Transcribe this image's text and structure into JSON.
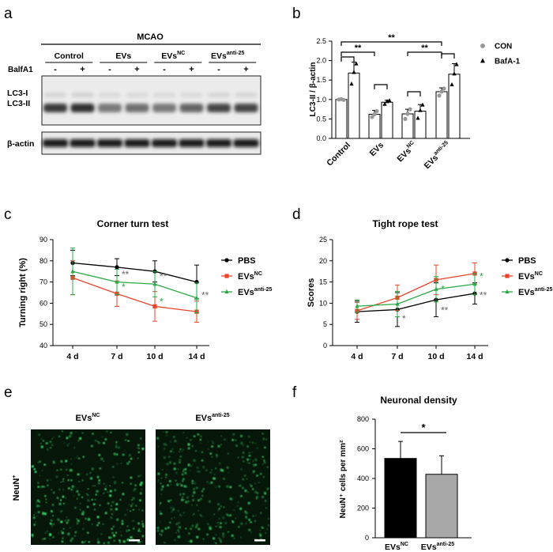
{
  "panel_letters": {
    "a": "a",
    "b": "b",
    "c": "c",
    "d": "d",
    "e": "e",
    "f": "f"
  },
  "blot": {
    "mcao": "MCAO",
    "bafa1_label": "BalfA1",
    "groups": [
      {
        "main": "Control",
        "sup": ""
      },
      {
        "main": "EVs",
        "sup": ""
      },
      {
        "main": "EVs",
        "sup": "NC"
      },
      {
        "main": "EVs",
        "sup": "anti-25"
      }
    ],
    "minus": "-",
    "plus": "+",
    "lc3i": "LC3-I",
    "lc3ii": "LC3-II",
    "actin": "β-actin",
    "lc3ii_intensity": [
      0.85,
      0.9,
      0.55,
      0.6,
      0.55,
      0.65,
      0.8,
      0.8
    ],
    "lc3i_intensity": [
      0.12,
      0.14,
      0.1,
      0.1,
      0.1,
      0.1,
      0.12,
      0.12
    ]
  },
  "chart_data": [
    {
      "id": "b",
      "type": "bar",
      "ylabel": "LC3-II / β-actin",
      "ylim": [
        0,
        2.5
      ],
      "yticks": [
        "0.0",
        "0.5",
        "1.0",
        "1.5",
        "2.0",
        "2.5"
      ],
      "categories": [
        {
          "main": "Control",
          "sup": ""
        },
        {
          "main": "EVs",
          "sup": ""
        },
        {
          "main": "EVs",
          "sup": "NC"
        },
        {
          "main": "EVs",
          "sup": "anti-25"
        }
      ],
      "series": [
        {
          "name": "CON",
          "values": [
            1.0,
            0.62,
            0.63,
            1.2
          ],
          "errors": [
            0.02,
            0.1,
            0.12,
            0.1
          ],
          "points": [
            [
              1.0,
              1.01,
              0.99
            ],
            [
              0.55,
              0.62,
              0.7
            ],
            [
              0.5,
              0.63,
              0.75
            ],
            [
              1.1,
              1.2,
              1.28
            ]
          ]
        },
        {
          "name": "BafA-1",
          "values": [
            1.68,
            0.93,
            0.7,
            1.65
          ],
          "errors": [
            0.28,
            0.05,
            0.17,
            0.27
          ],
          "points": [
            [
              1.4,
              1.7,
              1.92
            ],
            [
              0.88,
              0.95,
              0.97
            ],
            [
              0.52,
              0.72,
              0.86
            ],
            [
              1.38,
              1.66,
              1.9
            ]
          ]
        }
      ],
      "significance": [
        "**",
        "**",
        "**"
      ],
      "legend": "top-right"
    },
    {
      "id": "c",
      "type": "line",
      "title": "Corner turn test",
      "ylabel": "Turning right (%)",
      "ylim": [
        40,
        90
      ],
      "yticks": [
        "40",
        "50",
        "60",
        "70",
        "80",
        "90"
      ],
      "x": [
        "4 d",
        "7 d",
        "10 d",
        "14 d"
      ],
      "series": [
        {
          "name": "PBS",
          "sup": "",
          "color": "#000000",
          "values": [
            79,
            77,
            75,
            70
          ],
          "errors": [
            6,
            4,
            5,
            8
          ]
        },
        {
          "name": "EVs",
          "sup": "NC",
          "color": "#e8452a",
          "values": [
            72,
            64.5,
            58.5,
            56
          ],
          "errors": [
            8,
            6,
            7,
            5
          ]
        },
        {
          "name": "EVs",
          "sup": "anti-25",
          "color": "#2aa845",
          "values": [
            75,
            70,
            69,
            62.5
          ],
          "errors": [
            11,
            6,
            6,
            7
          ]
        }
      ],
      "annotations": [
        {
          "x": "7 d",
          "y": 74,
          "text": "**",
          "color": "#666666"
        },
        {
          "x": "7 d",
          "y": 68,
          "text": "*",
          "color": "#2aa845"
        },
        {
          "x": "10 d",
          "y": 73,
          "text": "**",
          "color": "#666666"
        },
        {
          "x": "10 d",
          "y": 61,
          "text": "*",
          "color": "#2aa845"
        },
        {
          "x": "14 d",
          "y": 64,
          "text": "**",
          "color": "#666666"
        }
      ],
      "legend": "right"
    },
    {
      "id": "d",
      "type": "line",
      "title": "Tight rope test",
      "ylabel": "Scores",
      "ylim": [
        0,
        25
      ],
      "yticks": [
        "0",
        "5",
        "10",
        "15",
        "20",
        "25"
      ],
      "x": [
        "4 d",
        "7 d",
        "10 d",
        "14 d"
      ],
      "series": [
        {
          "name": "PBS",
          "sup": "",
          "color": "#000000",
          "values": [
            8,
            8.5,
            10.8,
            12.3
          ],
          "errors": [
            2.5,
            4,
            4,
            2.5
          ]
        },
        {
          "name": "EVs",
          "sup": "NC",
          "color": "#e8452a",
          "values": [
            8.2,
            11.3,
            15.5,
            17
          ],
          "errors": [
            2,
            3,
            3.5,
            2.5
          ]
        },
        {
          "name": "EVs",
          "sup": "anti-25",
          "color": "#2aa845",
          "values": [
            9.3,
            9.8,
            13.3,
            14.5
          ],
          "errors": [
            1.5,
            3,
            3,
            2.5
          ]
        }
      ],
      "annotations": [
        {
          "x": "7 d",
          "y": 6.5,
          "text": "*",
          "color": "#666666"
        },
        {
          "x": "10 d",
          "y": 13.5,
          "text": "*",
          "color": "#2aa845"
        },
        {
          "x": "10 d",
          "y": 8.5,
          "text": "**",
          "color": "#666666"
        },
        {
          "x": "14 d",
          "y": 16.5,
          "text": "*",
          "color": "#2aa845"
        },
        {
          "x": "14 d",
          "y": 12,
          "text": "**",
          "color": "#666666"
        }
      ],
      "legend": "right"
    },
    {
      "id": "f",
      "type": "bar",
      "title": "Neuronal density",
      "ylabel": "NeuN⁺ cells per mm²",
      "ylim": [
        0,
        800
      ],
      "yticks": [
        "0",
        "200",
        "400",
        "600",
        "800"
      ],
      "categories": [
        {
          "main": "EVs",
          "sup": "NC"
        },
        {
          "main": "EVs",
          "sup": "anti-25"
        }
      ],
      "values": [
        535,
        428
      ],
      "errors": [
        115,
        125
      ],
      "colors": [
        "#000000",
        "#a8a8a8"
      ],
      "significance": "*"
    }
  ],
  "microscopy": {
    "labels": [
      {
        "main": "EVs",
        "sup": "NC"
      },
      {
        "main": "EVs",
        "sup": "anti-25"
      }
    ],
    "row_label": "NeuN",
    "row_label_sup": "+",
    "tint": "#3ee06a"
  }
}
